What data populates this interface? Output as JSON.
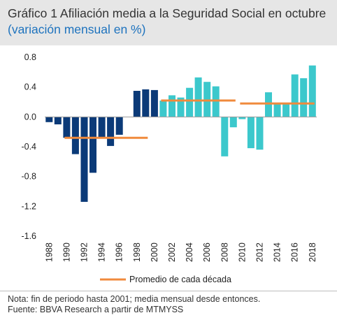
{
  "title": {
    "main": "Gráfico 1 Afiliación media a la Seguridad Social en octubre",
    "sub": "(variación mensual en %)"
  },
  "footer": {
    "note": "Nota: fin de periodo hasta 2001; media mensual desde entonces.",
    "source": "Fuente: BBVA Research a partir de MTMYSS"
  },
  "colors": {
    "dark_bar": "#0b3a78",
    "light_bar": "#3cc8cc",
    "average_line": "#f08a3c"
  },
  "chart_data": {
    "type": "bar",
    "categories": [
      "1988",
      "1989",
      "1990",
      "1991",
      "1992",
      "1993",
      "1994",
      "1995",
      "1996",
      "1997",
      "1998",
      "1999",
      "2000",
      "2001",
      "2002",
      "2003",
      "2004",
      "2005",
      "2006",
      "2007",
      "2008",
      "2009",
      "2010",
      "2011",
      "2012",
      "2013",
      "2014",
      "2015",
      "2016",
      "2017",
      "2018"
    ],
    "x_tick_labels": [
      "1988",
      "1990",
      "1992",
      "1994",
      "1996",
      "1998",
      "2000",
      "2002",
      "2004",
      "2006",
      "2008",
      "2010",
      "2012",
      "2014",
      "2016",
      "2018"
    ],
    "values": [
      -0.07,
      -0.1,
      -0.28,
      -0.5,
      -1.14,
      -0.75,
      -0.28,
      -0.39,
      -0.24,
      0.0,
      0.35,
      0.37,
      0.36,
      0.22,
      0.29,
      0.26,
      0.39,
      0.53,
      0.47,
      0.41,
      -0.53,
      -0.14,
      -0.03,
      -0.42,
      -0.44,
      0.33,
      0.18,
      0.18,
      0.57,
      0.52,
      0.69
    ],
    "bar_colors": [
      "dark",
      "dark",
      "dark",
      "dark",
      "dark",
      "dark",
      "dark",
      "dark",
      "dark",
      "dark",
      "dark",
      "dark",
      "dark",
      "light",
      "light",
      "light",
      "light",
      "light",
      "light",
      "light",
      "light",
      "light",
      "light",
      "light",
      "light",
      "light",
      "light",
      "light",
      "light",
      "light",
      "light"
    ],
    "decade_averages": [
      {
        "start": "1990",
        "end": "1999",
        "value": -0.28
      },
      {
        "start": "2001",
        "end": "2009",
        "value": 0.22
      },
      {
        "start": "2010",
        "end": "2018",
        "value": 0.18
      }
    ],
    "ylim": [
      -1.6,
      0.8
    ],
    "y_ticks": [
      "0.8",
      "0.4",
      "0.0",
      "-0.4",
      "-0.8",
      "-1.2",
      "-1.6"
    ],
    "legend": {
      "label": "Promedio de cada década",
      "position": "bottom"
    },
    "grid": false
  }
}
